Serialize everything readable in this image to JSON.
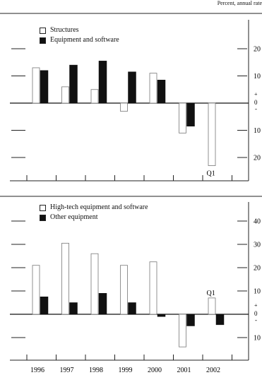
{
  "unit_note": "Percent, annual rate",
  "chart_data": [
    {
      "type": "bar",
      "categories": [
        "1996",
        "1997",
        "1998",
        "1999",
        "2000",
        "2001",
        "2002"
      ],
      "series": [
        {
          "name": "Structures",
          "values": [
            13,
            6,
            5,
            -3,
            11,
            -11,
            -23
          ],
          "color": "#ffffff"
        },
        {
          "name": "Equipment and software",
          "values": [
            12,
            14,
            15.5,
            11.5,
            8.5,
            -8.5,
            null
          ],
          "color": "#111111"
        }
      ],
      "ylim": [
        -25,
        22
      ],
      "ytick_labels": [
        {
          "value": 20,
          "label": "20"
        },
        {
          "value": 10,
          "label": "10"
        },
        {
          "value": -10,
          "label": "10"
        },
        {
          "value": -20,
          "label": "20"
        }
      ],
      "sign_labels": [
        "+",
        "0",
        "-"
      ],
      "annotation": "Q1",
      "legend": "top-left"
    },
    {
      "type": "bar",
      "categories": [
        "1996",
        "1997",
        "1998",
        "1999",
        "2000",
        "2001",
        "2002"
      ],
      "series": [
        {
          "name": "High-tech equipment and software",
          "values": [
            21,
            30.5,
            26,
            21,
            22.5,
            -14,
            7
          ],
          "color": "#ffffff"
        },
        {
          "name": "Other equipment",
          "values": [
            7.5,
            5,
            9,
            5,
            -1,
            -5,
            -4.5
          ],
          "color": "#111111"
        }
      ],
      "ylim": [
        -20,
        42
      ],
      "ytick_labels": [
        {
          "value": 40,
          "label": "40"
        },
        {
          "value": 30,
          "label": "30"
        },
        {
          "value": 20,
          "label": "20"
        },
        {
          "value": 10,
          "label": "10"
        },
        {
          "value": -10,
          "label": "10"
        }
      ],
      "sign_labels": [
        "+",
        "0",
        "-"
      ],
      "annotation": "Q1",
      "legend": "top-left"
    }
  ]
}
